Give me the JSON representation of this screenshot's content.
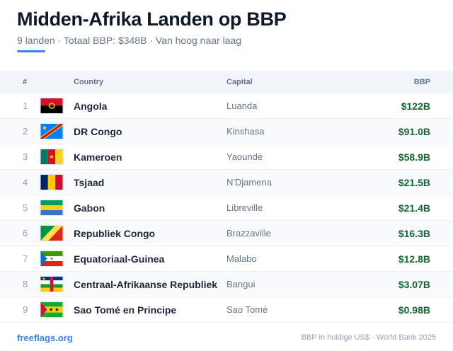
{
  "header": {
    "title": "Midden-Afrika Landen op BBP",
    "subtitle": "9 landen · Totaal BBP: $348B · Van hoog naar laag"
  },
  "table": {
    "columns": {
      "num": "#",
      "country": "Country",
      "capital": "Capital",
      "bbp": "BBP"
    },
    "rows": [
      {
        "num": "1",
        "flag": "angola-flag",
        "country": "Angola",
        "capital": "Luanda",
        "bbp": "$122B"
      },
      {
        "num": "2",
        "flag": "dr-congo-flag",
        "country": "DR Congo",
        "capital": "Kinshasa",
        "bbp": "$91.0B"
      },
      {
        "num": "3",
        "flag": "cameroon-flag",
        "country": "Kameroen",
        "capital": "Yaoundé",
        "bbp": "$58.9B"
      },
      {
        "num": "4",
        "flag": "chad-flag",
        "country": "Tsjaad",
        "capital": "N'Djamena",
        "bbp": "$21.5B"
      },
      {
        "num": "5",
        "flag": "gabon-flag",
        "country": "Gabon",
        "capital": "Libreville",
        "bbp": "$21.4B"
      },
      {
        "num": "6",
        "flag": "congo-flag",
        "country": "Republiek Congo",
        "capital": "Brazzaville",
        "bbp": "$16.3B"
      },
      {
        "num": "7",
        "flag": "equatorial-guinea-flag",
        "country": "Equatoriaal-Guinea",
        "capital": "Malabo",
        "bbp": "$12.8B"
      },
      {
        "num": "8",
        "flag": "car-flag",
        "country": "Centraal-Afrikaanse Republiek",
        "capital": "Bangui",
        "bbp": "$3.07B"
      },
      {
        "num": "9",
        "flag": "sao-tome-flag",
        "country": "Sao Tomé en Principe",
        "capital": "Sao Tomé",
        "bbp": "$0.98B"
      }
    ]
  },
  "footer": {
    "source_link": "freeflags.org",
    "note": "BBP in huidige US$ · World Bank 2025"
  },
  "colors": {
    "accent": "#3b82f6",
    "value": "#166534"
  }
}
